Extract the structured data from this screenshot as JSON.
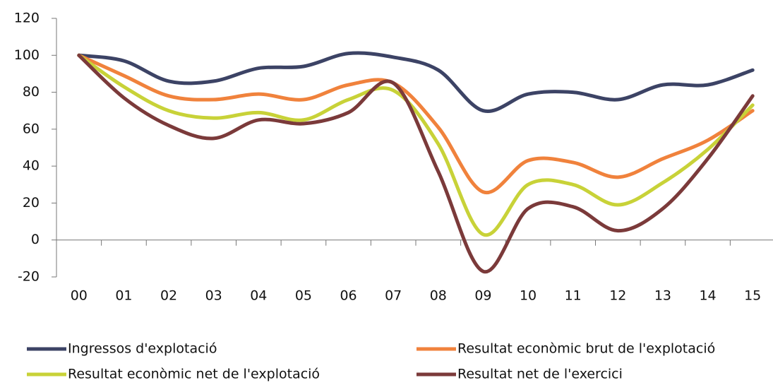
{
  "chart_data": {
    "type": "line",
    "categories": [
      "00",
      "01",
      "02",
      "03",
      "04",
      "05",
      "06",
      "07",
      "08",
      "09",
      "10",
      "11",
      "12",
      "13",
      "14",
      "15"
    ],
    "series": [
      {
        "name": "Ingressos d'explotació",
        "color": "#3c4365",
        "values": [
          100,
          97,
          86,
          86,
          93,
          94,
          101,
          99,
          92,
          70,
          79,
          80,
          76,
          84,
          84,
          92
        ]
      },
      {
        "name": "Resultat econòmic brut de l'explotació",
        "color": "#f0823c",
        "values": [
          100,
          89,
          78,
          76,
          79,
          76,
          84,
          85,
          61,
          26,
          43,
          42,
          34,
          44,
          54,
          70
        ]
      },
      {
        "name": "Resultat econòmic net de l'explotació",
        "color": "#c8d238",
        "values": [
          100,
          83,
          70,
          66,
          69,
          65,
          76,
          81,
          52,
          3,
          30,
          30,
          19,
          31,
          49,
          73
        ]
      },
      {
        "name": "Resultat net de l'exercici",
        "color": "#7b3a3a",
        "values": [
          100,
          77,
          62,
          55,
          65,
          63,
          69,
          85,
          37,
          -17,
          17,
          18,
          5,
          17,
          44,
          78
        ]
      }
    ],
    "ylim": [
      -20,
      120
    ],
    "yticks": [
      -20,
      0,
      20,
      40,
      60,
      80,
      100,
      120
    ],
    "grid": false,
    "smooth": true
  }
}
